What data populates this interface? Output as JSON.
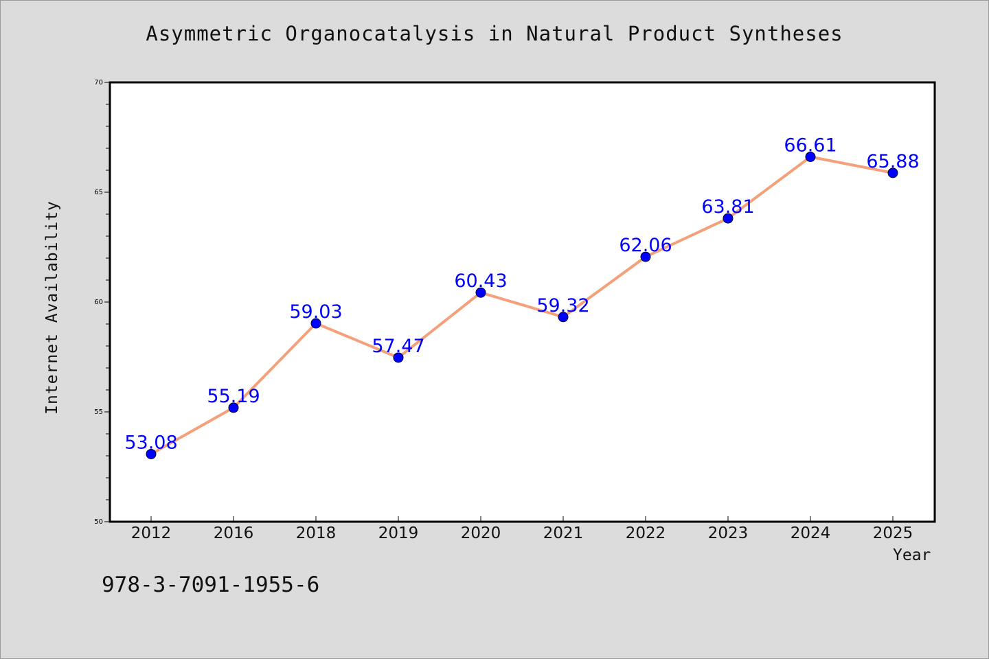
{
  "chart_data": {
    "type": "line",
    "title": "Asymmetric Organocatalysis in Natural Product Syntheses",
    "xlabel": "Year",
    "ylabel": "Internet Availability",
    "categories": [
      "2012",
      "2016",
      "2018",
      "2019",
      "2020",
      "2021",
      "2022",
      "2023",
      "2024",
      "2025"
    ],
    "series": [
      {
        "values": [
          53.08,
          55.19,
          59.03,
          57.47,
          60.43,
          59.32,
          62.06,
          63.81,
          66.61,
          65.88
        ]
      }
    ],
    "data_labels": [
      "53.08",
      "55.19",
      "59.03",
      "57.47",
      "60.43",
      "59.32",
      "62.06",
      "63.81",
      "66.61",
      "65.88"
    ],
    "ylim": [
      50,
      70
    ],
    "yticks": [
      50,
      55,
      60,
      65,
      70
    ],
    "grid": false,
    "colors": {
      "line": "#f4a07a",
      "marker": "#0000ff",
      "data_label": "#0000ff",
      "background": "#dcdcdc",
      "plot_background": "#ffffff"
    }
  },
  "footer_text": "978-3-7091-1955-6"
}
